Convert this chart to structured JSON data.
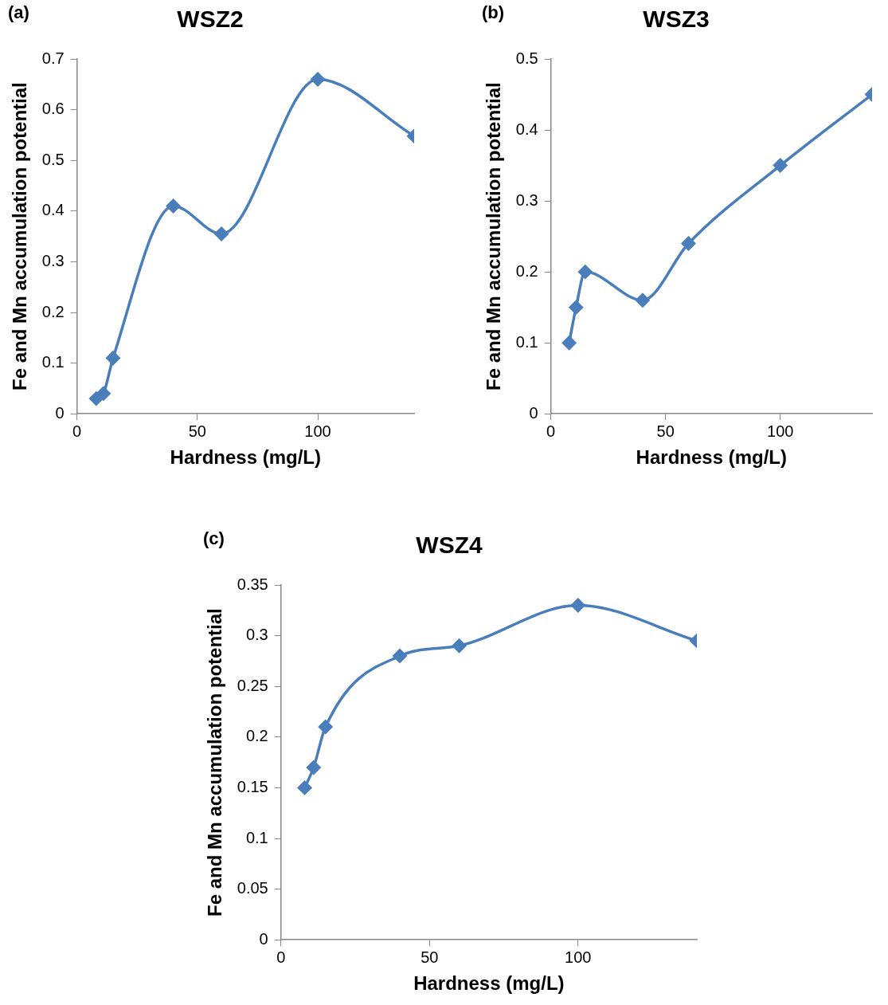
{
  "chart_data": [
    {
      "type": "line",
      "title": "WSZ2",
      "xlabel": "Hardness (mg/L)",
      "ylabel": "Fe and Mn accumulation potential",
      "annotations": [
        "(a)"
      ],
      "x": [
        8,
        11,
        15,
        40,
        60,
        100,
        140
      ],
      "values": [
        0.03,
        0.04,
        0.11,
        0.41,
        0.355,
        0.66,
        0.548
      ],
      "color": "#4a7ebb",
      "xlim": [
        0,
        140
      ],
      "xticks": [
        0,
        50,
        100
      ],
      "ylim": [
        0,
        0.7
      ],
      "yticks": [
        0,
        0.1,
        0.2,
        0.3,
        0.4,
        0.5,
        0.6,
        0.7
      ],
      "grid": false,
      "marker": "diamond",
      "line_style": "solid"
    },
    {
      "type": "line",
      "title": "WSZ3",
      "xlabel": "Hardness (mg/L)",
      "ylabel": "Fe and Mn accumulation potential",
      "annotations": [
        "(b)"
      ],
      "x": [
        8,
        11,
        15,
        40,
        60,
        100,
        140
      ],
      "values": [
        0.1,
        0.15,
        0.2,
        0.16,
        0.24,
        0.35,
        0.45
      ],
      "color": "#4a7ebb",
      "xlim": [
        0,
        140
      ],
      "xticks": [
        0,
        50,
        100
      ],
      "ylim": [
        0,
        0.5
      ],
      "yticks": [
        0,
        0.1,
        0.2,
        0.3,
        0.4,
        0.5
      ],
      "grid": false,
      "marker": "diamond",
      "line_style": "solid"
    },
    {
      "type": "line",
      "title": "WSZ4",
      "xlabel": "Hardness (mg/L)",
      "ylabel": "Fe and Mn accumulation potential",
      "annotations": [
        "(c)"
      ],
      "x": [
        8,
        11,
        15,
        40,
        60,
        100,
        140
      ],
      "values": [
        0.15,
        0.17,
        0.21,
        0.28,
        0.29,
        0.33,
        0.295
      ],
      "color": "#4a7ebb",
      "xlim": [
        0,
        140
      ],
      "xticks": [
        0,
        50,
        100
      ],
      "ylim": [
        0,
        0.35
      ],
      "yticks": [
        0,
        0.05,
        0.1,
        0.15,
        0.2,
        0.25,
        0.3,
        0.35
      ],
      "grid": false,
      "marker": "diamond",
      "line_style": "solid"
    }
  ]
}
